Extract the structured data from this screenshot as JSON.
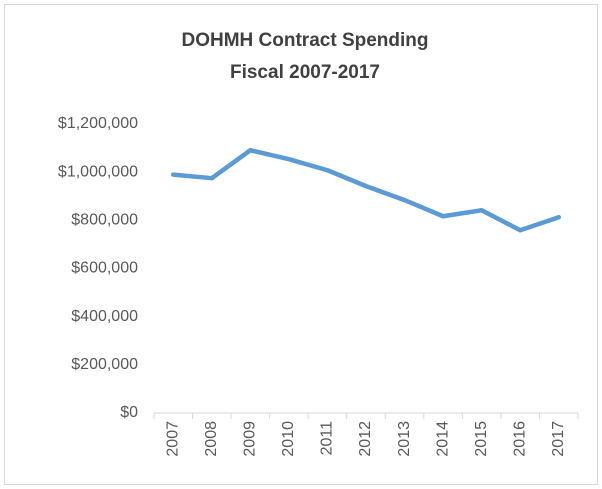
{
  "chart_data": {
    "type": "line",
    "title": [
      "DOHMH Contract Spending",
      "Fiscal 2007-2017"
    ],
    "categories": [
      "2007",
      "2008",
      "2009",
      "2010",
      "2011",
      "2012",
      "2013",
      "2014",
      "2015",
      "2016",
      "2017"
    ],
    "series": [
      {
        "color": "#5b9bd5",
        "values": [
          990000,
          975000,
          1091000,
          1054000,
          1008000,
          942000,
          884000,
          817000,
          842000,
          759000,
          813000
        ]
      }
    ],
    "ylim": [
      0,
      1200000
    ],
    "yticks": [
      {
        "value": 0,
        "label": "$0"
      },
      {
        "value": 200000,
        "label": "$200,000"
      },
      {
        "value": 400000,
        "label": "$400,000"
      },
      {
        "value": 600000,
        "label": "$600,000"
      },
      {
        "value": 800000,
        "label": "$800,000"
      },
      {
        "value": 1000000,
        "label": "$1,000,000"
      },
      {
        "value": 1200000,
        "label": "$1,200,000"
      }
    ],
    "grid": false
  }
}
